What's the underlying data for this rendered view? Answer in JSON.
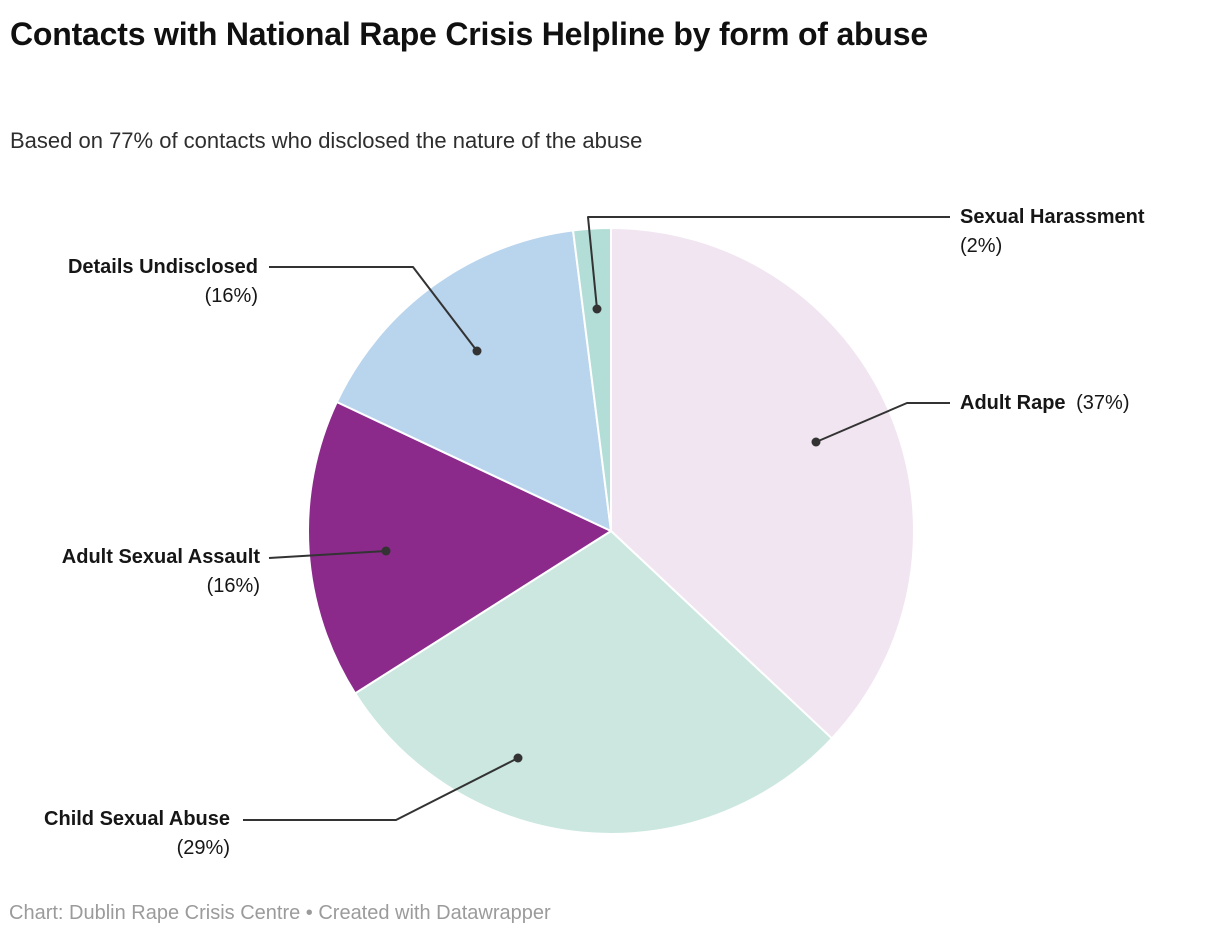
{
  "header": {
    "title": "Contacts with National Rape Crisis Helpline by form of abuse",
    "subtitle": "Based on 77% of contacts who disclosed the nature of the abuse"
  },
  "chart_data": {
    "type": "pie",
    "title": "Contacts with National Rape Crisis Helpline by form of abuse",
    "subtitle": "Based on 77% of contacts who disclosed the nature of the abuse",
    "unit": "percent",
    "start_angle": "12-oclock",
    "direction": "clockwise",
    "total": 100,
    "slices": [
      {
        "label": "Adult Rape",
        "value": 37,
        "pct_text": "(37%)",
        "color": "#f0e5f0"
      },
      {
        "label": "Child Sexual Abuse",
        "value": 29,
        "pct_text": "(29%)",
        "color": "#cbe7e0"
      },
      {
        "label": "Adult Sexual Assault",
        "value": 16,
        "pct_text": "(16%)",
        "color": "#8b2a8b"
      },
      {
        "label": "Details Undisclosed",
        "value": 16,
        "pct_text": "(16%)",
        "color": "#b9d4ed"
      },
      {
        "label": "Sexual Harassment",
        "value": 2,
        "pct_text": "(2%)",
        "color": "#b2ded7"
      }
    ],
    "slice_border_color": "#ffffff",
    "leader_line_color": "#333333",
    "legend_position": "outside-callouts"
  },
  "footer": {
    "text": "Chart: Dublin Rape Crisis Centre • Created with Datawrapper"
  }
}
